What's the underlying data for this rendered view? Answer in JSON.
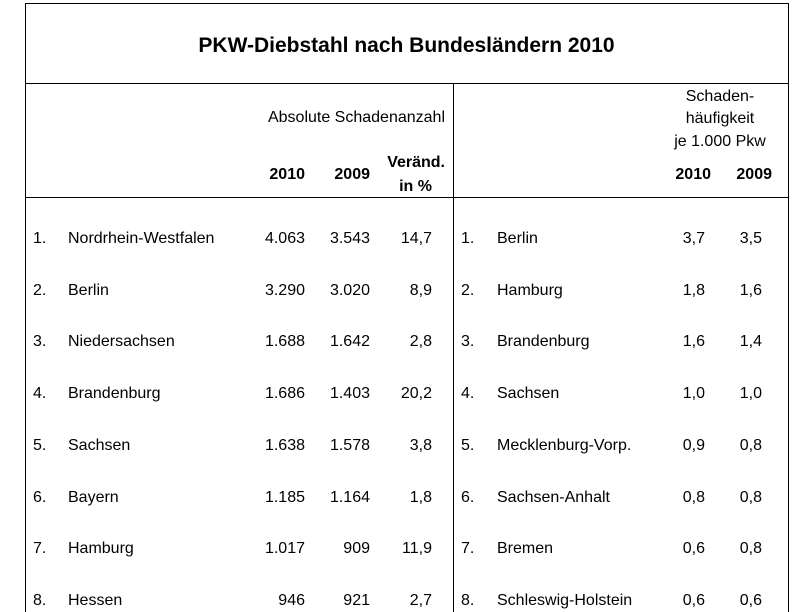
{
  "title": "PKW-Diebstahl nach Bundesländern 2010",
  "left_table": {
    "heading": "Absolute Schadenanzahl",
    "columns": [
      "2010",
      "2009",
      "Veränd.",
      "in %"
    ],
    "rows": [
      [
        "1.",
        "Nordrhein-Westfalen",
        "4.063",
        "3.543",
        "14,7"
      ],
      [
        "2.",
        "Berlin",
        "3.290",
        "3.020",
        "8,9"
      ],
      [
        "3.",
        "Niedersachsen",
        "1.688",
        "1.642",
        "2,8"
      ],
      [
        "4.",
        "Brandenburg",
        "1.686",
        "1.403",
        "20,2"
      ],
      [
        "5.",
        "Sachsen",
        "1.638",
        "1.578",
        "3,8"
      ],
      [
        "6.",
        "Bayern",
        "1.185",
        "1.164",
        "1,8"
      ],
      [
        "7.",
        "Hamburg",
        "1.017",
        "909",
        "11,9"
      ],
      [
        "8.",
        "Hessen",
        "946",
        "921",
        "2,7"
      ]
    ]
  },
  "right_table": {
    "heading": [
      "Schaden-",
      "häufigkeit",
      "je 1.000 Pkw"
    ],
    "columns": [
      "2010",
      "2009"
    ],
    "rows": [
      [
        "1.",
        "Berlin",
        "3,7",
        "3,5"
      ],
      [
        "2.",
        "Hamburg",
        "1,8",
        "1,6"
      ],
      [
        "3.",
        "Brandenburg",
        "1,6",
        "1,4"
      ],
      [
        "4.",
        "Sachsen",
        "1,0",
        "1,0"
      ],
      [
        "5.",
        "Mecklenburg-Vorp.",
        "0,9",
        "0,8"
      ],
      [
        "6.",
        "Sachsen-Anhalt",
        "0,8",
        "0,8"
      ],
      [
        "7.",
        "Bremen",
        "0,6",
        "0,8"
      ],
      [
        "8.",
        "Schleswig-Holstein",
        "0,6",
        "0,6"
      ]
    ]
  }
}
